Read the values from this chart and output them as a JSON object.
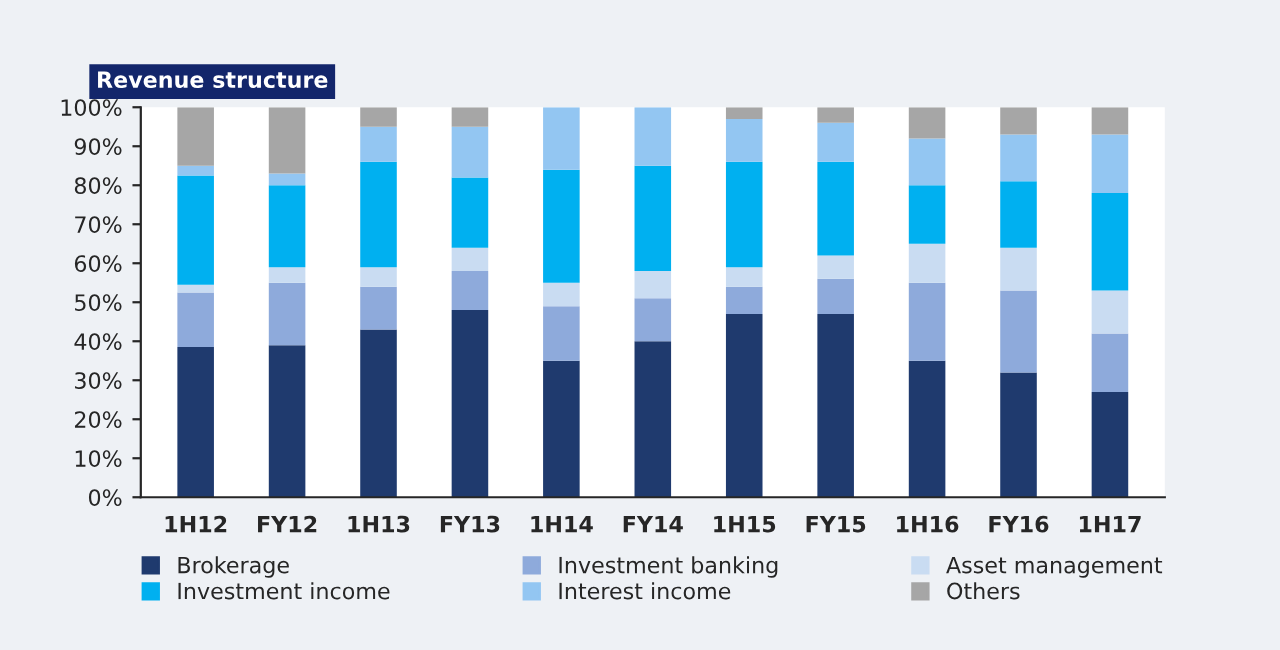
{
  "chart_data": {
    "type": "bar",
    "title": "Revenue structure",
    "stacked": true,
    "categories": [
      "1H12",
      "FY12",
      "1H13",
      "FY13",
      "1H14",
      "FY14",
      "1H15",
      "FY15",
      "1H16",
      "FY16",
      "1H17"
    ],
    "series": [
      {
        "name": "Brokerage",
        "color": "#1f3a6e",
        "values": [
          38.5,
          39,
          43,
          48,
          35,
          40,
          47,
          47,
          35,
          32,
          27
        ]
      },
      {
        "name": "Investment banking",
        "color": "#8eaadb",
        "values": [
          14,
          16,
          11,
          10,
          14,
          11,
          7,
          9,
          20,
          21,
          15
        ]
      },
      {
        "name": "Asset management",
        "color": "#c9dcf2",
        "values": [
          2,
          4,
          5,
          6,
          6,
          7,
          5,
          6,
          10,
          11,
          11
        ]
      },
      {
        "name": "Investment income",
        "color": "#00b0f0",
        "values": [
          28,
          21,
          27,
          18,
          29,
          27,
          27,
          24,
          15,
          17,
          25
        ]
      },
      {
        "name": "Interest income",
        "color": "#93c6f2",
        "values": [
          2.5,
          3,
          9,
          13,
          16,
          15,
          11,
          10,
          12,
          12,
          15
        ]
      },
      {
        "name": "Others",
        "color": "#a6a6a6",
        "values": [
          15,
          17,
          5,
          5,
          0,
          0,
          3,
          4,
          8,
          7,
          7
        ]
      }
    ],
    "ylim": [
      0,
      100
    ],
    "yticks": [
      {
        "value": 0,
        "label": "0%"
      },
      {
        "value": 10,
        "label": "10%"
      },
      {
        "value": 20,
        "label": "20%"
      },
      {
        "value": 30,
        "label": "30%"
      },
      {
        "value": 40,
        "label": "40%"
      },
      {
        "value": 50,
        "label": "50%"
      },
      {
        "value": 60,
        "label": "60%"
      },
      {
        "value": 70,
        "label": "70%"
      },
      {
        "value": 80,
        "label": "80%"
      },
      {
        "value": 90,
        "label": "90%"
      },
      {
        "value": 100,
        "label": "100%"
      }
    ],
    "grid": false,
    "legend": "bottom"
  }
}
